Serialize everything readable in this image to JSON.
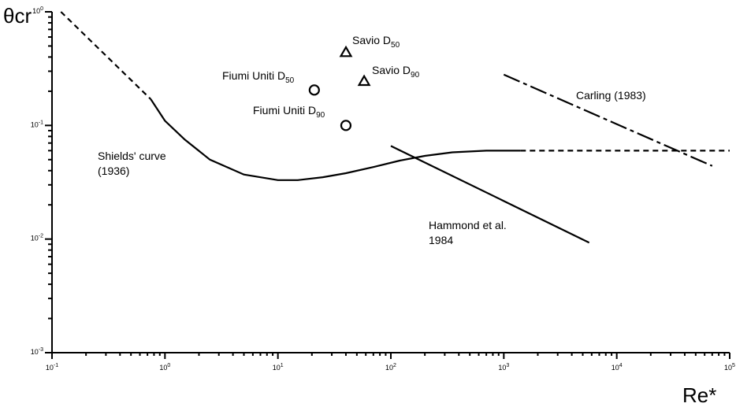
{
  "chart_data": {
    "type": "line",
    "title": "",
    "ylabel": "θcr",
    "xlabel": "Re*",
    "xscale": "log",
    "yscale": "log",
    "xlim": [
      0.1,
      100000
    ],
    "ylim": [
      0.001,
      1
    ],
    "grid": false,
    "x_ticks": [
      {
        "base": "10",
        "exp": "-1",
        "value": 0.1
      },
      {
        "base": "10",
        "exp": "0",
        "value": 1
      },
      {
        "base": "10",
        "exp": "1",
        "value": 10
      },
      {
        "base": "10",
        "exp": "2",
        "value": 100
      },
      {
        "base": "10",
        "exp": "3",
        "value": 1000
      },
      {
        "base": "10",
        "exp": "4",
        "value": 10000
      },
      {
        "base": "10",
        "exp": "5",
        "value": 100000
      }
    ],
    "y_ticks": [
      {
        "base": "10",
        "exp": "-3",
        "value": 0.001
      },
      {
        "base": "10",
        "exp": "-2",
        "value": 0.01
      },
      {
        "base": "10",
        "exp": "-1",
        "value": 0.1
      },
      {
        "base": "10",
        "exp": "0",
        "value": 1
      }
    ],
    "series": [
      {
        "id": "shields-dashed-left",
        "style": "dashed",
        "points": [
          [
            0.12,
            1.0
          ],
          [
            0.75,
            0.17
          ]
        ]
      },
      {
        "id": "shields-solid",
        "style": "solid",
        "points": [
          [
            0.75,
            0.17
          ],
          [
            1.0,
            0.11
          ],
          [
            1.5,
            0.075
          ],
          [
            2.5,
            0.05
          ],
          [
            5,
            0.037
          ],
          [
            10,
            0.033
          ],
          [
            15,
            0.033
          ],
          [
            25,
            0.035
          ],
          [
            40,
            0.038
          ],
          [
            70,
            0.043
          ],
          [
            120,
            0.049
          ],
          [
            200,
            0.054
          ],
          [
            350,
            0.058
          ],
          [
            700,
            0.06
          ],
          [
            1400,
            0.06
          ]
        ]
      },
      {
        "id": "shields-dashed-right",
        "style": "dashed",
        "points": [
          [
            1400,
            0.06
          ],
          [
            100000,
            0.06
          ]
        ]
      },
      {
        "id": "hammond-1984",
        "style": "solid",
        "points": [
          [
            100,
            0.066
          ],
          [
            5700,
            0.0093
          ]
        ]
      },
      {
        "id": "carling-1983",
        "style": "dashdot",
        "points": [
          [
            1000,
            0.28
          ],
          [
            70000,
            0.044
          ]
        ]
      }
    ],
    "markers": [
      {
        "id": "savio-d50",
        "shape": "triangle",
        "x": 40,
        "y": 0.44
      },
      {
        "id": "savio-d90",
        "shape": "triangle",
        "x": 58,
        "y": 0.245
      },
      {
        "id": "fiumi-d50",
        "shape": "circle",
        "x": 21,
        "y": 0.205
      },
      {
        "id": "fiumi-d90",
        "shape": "circle",
        "x": 40,
        "y": 0.1
      }
    ],
    "annotations": {
      "savio_d50": {
        "main": "Savio D",
        "sub": "50"
      },
      "savio_d90": {
        "main": "Savio D",
        "sub": "90"
      },
      "fiumi_d50": {
        "main": "Fiumi Uniti D",
        "sub": "50"
      },
      "fiumi_d90": {
        "main": "Fiumi Uniti D",
        "sub": "90"
      },
      "carling": "Carling (1983)",
      "shields_line1": "Shields' curve",
      "shields_line2": "(1936)",
      "hammond_line1": "Hammond et al.",
      "hammond_line2": "1984"
    }
  }
}
